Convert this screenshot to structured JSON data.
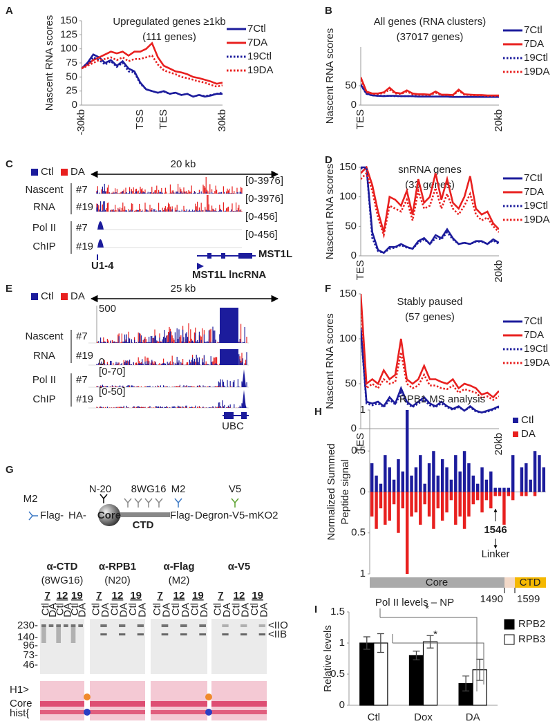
{
  "chart_data": [
    {
      "type": "line",
      "label": "A",
      "title": "Upregulated genes ≥1kb",
      "subtitle": "(111 genes)",
      "y_label": "Nascent RNA scores",
      "categories": [
        "-30kb",
        null,
        null,
        null,
        null,
        null,
        null,
        null,
        null,
        null,
        "TSS",
        null,
        null,
        null,
        "TES",
        null,
        null,
        null,
        null,
        null,
        null,
        null,
        null,
        null,
        "30kb"
      ],
      "ylim": [
        0,
        150
      ],
      "yticks": [
        0,
        25,
        50,
        75,
        100,
        125,
        150
      ],
      "series": [
        {
          "name": "7Ctl",
          "color": "#1c1c9c",
          "line_style": "solid",
          "values": [
            65,
            75,
            90,
            85,
            75,
            80,
            70,
            78,
            65,
            60,
            40,
            28,
            25,
            22,
            25,
            20,
            22,
            18,
            20,
            15,
            18,
            15,
            17,
            20,
            20
          ]
        },
        {
          "name": "7DA",
          "color": "#e8201f",
          "line_style": "solid",
          "values": [
            65,
            72,
            80,
            85,
            90,
            95,
            92,
            95,
            88,
            95,
            95,
            100,
            110,
            85,
            70,
            65,
            60,
            58,
            55,
            50,
            48,
            45,
            42,
            38,
            40
          ]
        },
        {
          "name": "19Ctl",
          "color": "#1c1c9c",
          "line_style": "dotted",
          "values": [
            65,
            72,
            85,
            80,
            72,
            78,
            68,
            75,
            60,
            58,
            38,
            28,
            25,
            22,
            24,
            20,
            22,
            18,
            20,
            15,
            18,
            16,
            18,
            20,
            22
          ]
        },
        {
          "name": "19DA",
          "color": "#e8201f",
          "line_style": "dotted",
          "values": [
            65,
            70,
            75,
            80,
            82,
            85,
            80,
            85,
            78,
            82,
            82,
            85,
            88,
            72,
            62,
            58,
            55,
            50,
            48,
            45,
            42,
            40,
            36,
            33,
            35
          ]
        }
      ]
    },
    {
      "type": "line",
      "label": "B",
      "title": "All genes (RNA clusters)",
      "subtitle": "(37017 genes)",
      "y_label": "Nascent RNA scores",
      "categories": [
        "TES",
        null,
        null,
        null,
        null,
        null,
        null,
        null,
        null,
        null,
        null,
        null,
        null,
        null,
        null,
        null,
        null,
        null,
        null,
        null,
        null,
        null,
        null,
        null,
        "20kb"
      ],
      "ylim": [
        0,
        150
      ],
      "yticks": [
        0,
        50
      ],
      "series": [
        {
          "name": "7Ctl",
          "color": "#1c1c9c",
          "line_style": "solid",
          "values": [
            53,
            30,
            25,
            24,
            23,
            24,
            24,
            23,
            23,
            23,
            22,
            22,
            22,
            22,
            22,
            22,
            21,
            21,
            21,
            21,
            21,
            21,
            21,
            21,
            21
          ]
        },
        {
          "name": "7DA",
          "color": "#e8201f",
          "line_style": "solid",
          "values": [
            72,
            35,
            30,
            30,
            33,
            45,
            32,
            30,
            38,
            30,
            28,
            28,
            27,
            35,
            27,
            27,
            26,
            40,
            28,
            27,
            26,
            26,
            25,
            25,
            25
          ]
        },
        {
          "name": "19Ctl",
          "color": "#1c1c9c",
          "line_style": "dotted",
          "values": [
            52,
            29,
            25,
            24,
            24,
            24,
            23,
            23,
            23,
            23,
            22,
            22,
            22,
            22,
            22,
            22,
            21,
            21,
            21,
            21,
            21,
            21,
            21,
            21,
            21
          ]
        },
        {
          "name": "19DA",
          "color": "#e8201f",
          "line_style": "dotted",
          "values": [
            65,
            33,
            29,
            29,
            31,
            40,
            30,
            29,
            35,
            28,
            27,
            27,
            26,
            32,
            26,
            26,
            25,
            37,
            27,
            26,
            25,
            25,
            24,
            24,
            24
          ]
        }
      ]
    },
    {
      "type": "line",
      "label": "D",
      "title": "snRNA genes",
      "subtitle": "(33 genes)",
      "y_label": "Nascent RNA  scores",
      "categories": [
        "TES",
        null,
        null,
        null,
        null,
        null,
        null,
        null,
        null,
        null,
        null,
        null,
        null,
        null,
        null,
        null,
        null,
        null,
        null,
        null,
        null,
        null,
        null,
        null,
        "20kb"
      ],
      "ylim": [
        0,
        150
      ],
      "yticks": [
        0,
        50,
        100,
        150
      ],
      "series": [
        {
          "name": "7Ctl",
          "color": "#1c1c9c",
          "line_style": "solid",
          "values": [
            150,
            150,
            40,
            10,
            5,
            15,
            15,
            20,
            15,
            12,
            25,
            30,
            20,
            35,
            30,
            45,
            30,
            20,
            22,
            20,
            25,
            25,
            20,
            28,
            22
          ]
        },
        {
          "name": "7DA",
          "color": "#e8201f",
          "line_style": "solid",
          "values": [
            140,
            150,
            120,
            75,
            40,
            100,
            95,
            85,
            110,
            70,
            130,
            90,
            100,
            140,
            95,
            130,
            90,
            80,
            100,
            135,
            80,
            70,
            75,
            55,
            45
          ]
        },
        {
          "name": "19Ctl",
          "color": "#1c1c9c",
          "line_style": "dotted",
          "values": [
            148,
            150,
            30,
            8,
            5,
            12,
            14,
            18,
            14,
            12,
            22,
            28,
            20,
            30,
            28,
            40,
            28,
            20,
            22,
            20,
            24,
            24,
            20,
            26,
            20
          ]
        },
        {
          "name": "19DA",
          "color": "#e8201f",
          "line_style": "dotted",
          "values": [
            130,
            140,
            110,
            65,
            35,
            85,
            80,
            75,
            95,
            60,
            110,
            80,
            85,
            115,
            80,
            105,
            80,
            70,
            85,
            105,
            70,
            60,
            65,
            50,
            40
          ]
        }
      ]
    },
    {
      "type": "line",
      "label": "F",
      "title": "Stably paused",
      "subtitle": "(57 genes)",
      "y_label": "Nascent RNA scores",
      "categories": [
        "TES",
        null,
        null,
        null,
        null,
        null,
        null,
        null,
        null,
        null,
        null,
        null,
        null,
        null,
        null,
        null,
        null,
        null,
        null,
        null,
        null,
        null,
        null,
        null,
        "20kb"
      ],
      "ylim": [
        0,
        150
      ],
      "yticks": [
        0,
        50,
        100,
        150
      ],
      "series": [
        {
          "name": "7Ctl",
          "color": "#1c1c9c",
          "line_style": "solid",
          "values": [
            112,
            30,
            28,
            30,
            25,
            35,
            28,
            45,
            30,
            25,
            30,
            35,
            28,
            25,
            30,
            25,
            22,
            25,
            20,
            25,
            20,
            18,
            20,
            22,
            25
          ]
        },
        {
          "name": "7DA",
          "color": "#e8201f",
          "line_style": "solid",
          "values": [
            150,
            50,
            55,
            50,
            65,
            55,
            60,
            100,
            55,
            50,
            55,
            70,
            55,
            55,
            52,
            50,
            55,
            45,
            50,
            48,
            45,
            38,
            40,
            35,
            42
          ]
        },
        {
          "name": "19Ctl",
          "color": "#1c1c9c",
          "line_style": "dotted",
          "values": [
            110,
            28,
            26,
            28,
            24,
            32,
            27,
            40,
            28,
            24,
            28,
            32,
            26,
            24,
            28,
            24,
            21,
            24,
            20,
            24,
            19,
            18,
            19,
            21,
            24
          ]
        },
        {
          "name": "19DA",
          "color": "#e8201f",
          "line_style": "dotted",
          "values": [
            140,
            45,
            50,
            45,
            55,
            50,
            52,
            85,
            50,
            45,
            48,
            60,
            48,
            48,
            45,
            44,
            48,
            40,
            44,
            42,
            40,
            34,
            36,
            32,
            36
          ]
        }
      ]
    },
    {
      "type": "diverging_bar",
      "label": "H",
      "title": "RPB1 MS analysis",
      "y_label": [
        "Normalized Summed",
        "Peptide signal"
      ],
      "ylim": [
        -1,
        1
      ],
      "yticks": [
        {
          "value": -1,
          "label": "1"
        },
        {
          "value": -0.5,
          "label": "0.5"
        },
        0,
        0.5,
        1
      ],
      "series": [
        {
          "name": "Ctl",
          "color": "#1c1c9c",
          "values": [
            0.35,
            0.2,
            0.1,
            0.45,
            0.3,
            0.15,
            0.4,
            0.25,
            1.0,
            0.2,
            0.3,
            0.45,
            0.1,
            0.35,
            0.5,
            0.2,
            0.4,
            0.3,
            0.15,
            0.45,
            0.25,
            0.5,
            0.35,
            0.2,
            0.1,
            0.3,
            0.15,
            0.25,
            0.05,
            0.05,
            0.05,
            0.05,
            0.45,
            0,
            0.3,
            0.35,
            0.15,
            0.5,
            0.45,
            0.3
          ]
        },
        {
          "name": "DA",
          "color": "#e8201f",
          "values": [
            -0.3,
            -0.45,
            -0.2,
            -0.4,
            -0.35,
            -0.15,
            -0.5,
            -0.2,
            -1.0,
            -0.3,
            -0.25,
            -0.4,
            -0.15,
            -0.3,
            -0.45,
            -0.2,
            -0.35,
            -0.25,
            -0.1,
            -0.4,
            -0.3,
            -0.45,
            -0.3,
            -0.15,
            -0.1,
            -0.25,
            -0.1,
            -0.2,
            -0.05,
            -0.05,
            -0.4,
            -0.05,
            -0.1,
            0,
            -0.05,
            -0.05,
            0,
            -0.05,
            0,
            0
          ]
        }
      ],
      "site": "1546",
      "site_label": "Linker",
      "domains": [
        "Core",
        "CTD"
      ],
      "boundaries": [
        "1490",
        "1599"
      ]
    },
    {
      "type": "grouped_bar",
      "label": "I",
      "title": "Pol II levels – NP",
      "y_label": "Relative levels",
      "categories": [
        "Ctl",
        "Dox",
        "DA"
      ],
      "ylim": [
        0,
        1.5
      ],
      "yticks": [
        0,
        0.5,
        1,
        1.5
      ],
      "series": [
        {
          "name": "RPB2",
          "color": "#000000",
          "values": [
            1.0,
            0.8,
            0.35
          ],
          "errors": [
            0.1,
            0.07,
            0.12
          ]
        },
        {
          "name": "RPB3",
          "color": "#ffffff",
          "values": [
            1.0,
            1.02,
            0.57
          ],
          "errors": [
            0.15,
            0.1,
            0.17
          ]
        }
      ],
      "annotations": [
        "*",
        "*"
      ]
    }
  ],
  "panels": {
    "C": {
      "label": "C",
      "legend": [
        "Ctl",
        "DA"
      ],
      "scale": "20 kb",
      "assays": [
        [
          "Nascent",
          "RNA"
        ],
        [
          "Pol II",
          "ChIP"
        ]
      ],
      "samples": [
        "#7",
        "#19",
        "#7",
        "#19"
      ],
      "ranges": [
        "[0-3976]",
        "[0-3976]",
        "[0-456]",
        "[0-456]"
      ],
      "genes": [
        "U1-4",
        "MST1L",
        "MST1L lncRNA"
      ]
    },
    "E": {
      "label": "E",
      "legend": [
        "Ctl",
        "DA"
      ],
      "scale": "25 kb",
      "assays": [
        [
          "Nascent",
          "RNA"
        ],
        [
          "Pol II",
          "ChIP"
        ]
      ],
      "samples": [
        "#7",
        "#19",
        "#7",
        "#19"
      ],
      "ranges": [
        "500",
        "0",
        "[0-70]",
        "[0-50]"
      ],
      "genes": [
        "UBC"
      ]
    },
    "G": {
      "label": "G",
      "antibodies": [
        "M2",
        "N-20",
        "8WG16",
        "M2",
        "V5"
      ],
      "parts": [
        "Flag-",
        "HA-",
        "Core",
        "CTD",
        "Flag-",
        "Degron-",
        "V5-",
        "mKO2"
      ],
      "blots": [
        {
          "antibody": "α-CTD",
          "clone": "(8WG16)"
        },
        {
          "antibody": "α-RPB1",
          "clone": "(N20)"
        },
        {
          "antibody": "α-Flag",
          "clone": "(M2)"
        },
        {
          "antibody": "α-V5"
        }
      ],
      "clones": [
        "7",
        "12",
        "19"
      ],
      "lanes": [
        "Ctl",
        "DA"
      ],
      "markers": [
        "230-",
        "140-",
        "96-",
        "73-",
        "46-"
      ],
      "bands": [
        "<IIO",
        "<IIB"
      ],
      "stain_labels": [
        "H1>",
        "Core",
        "hist{"
      ]
    }
  }
}
